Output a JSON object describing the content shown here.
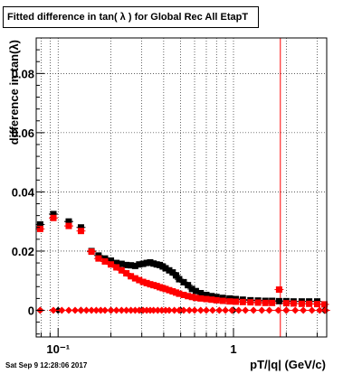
{
  "chart_data": {
    "type": "scatter",
    "title": "Fitted difference in tan( λ ) for Global Rec All EtapT",
    "xlabel": "pT/|q| (GeV/c)",
    "ylabel": "difference in tan(λ)",
    "x_scale": "log",
    "xlim": [
      0.075,
      3.4
    ],
    "ylim": [
      -0.009,
      0.092
    ],
    "grid": true,
    "y_ticks": [
      {
        "value": 0,
        "label": "0"
      },
      {
        "value": 0.02,
        "label": "0.02"
      },
      {
        "value": 0.04,
        "label": "0.04"
      },
      {
        "value": 0.06,
        "label": "0.06"
      },
      {
        "value": 0.08,
        "label": "0.08"
      }
    ],
    "x_ticks": [
      {
        "value": 0.1,
        "label": "10⁻¹"
      },
      {
        "value": 1,
        "label": "1"
      }
    ],
    "vertical_line": {
      "x": 1.85,
      "color": "#ff0000"
    },
    "series": [
      {
        "marker": "square",
        "color": "#000000",
        "x": [
          0.079,
          0.094,
          0.115,
          0.135,
          0.155,
          0.17,
          0.185,
          0.2,
          0.215,
          0.23,
          0.245,
          0.26,
          0.275,
          0.29,
          0.305,
          0.32,
          0.335,
          0.35,
          0.365,
          0.38,
          0.395,
          0.41,
          0.43,
          0.45,
          0.47,
          0.49,
          0.52,
          0.55,
          0.58,
          0.61,
          0.65,
          0.7,
          0.75,
          0.8,
          0.87,
          0.95,
          1.03,
          1.13,
          1.25,
          1.38,
          1.52,
          1.66,
          1.82,
          2.0,
          2.2,
          2.45,
          2.7,
          3.0,
          3.3
        ],
        "y": [
          0.029,
          0.0325,
          0.03,
          0.028,
          0.02,
          0.0185,
          0.0175,
          0.0168,
          0.016,
          0.0157,
          0.0153,
          0.0152,
          0.015,
          0.0155,
          0.0157,
          0.016,
          0.0162,
          0.0158,
          0.0155,
          0.0153,
          0.0148,
          0.0142,
          0.0135,
          0.0128,
          0.0118,
          0.0105,
          0.0095,
          0.0085,
          0.0072,
          0.0065,
          0.0058,
          0.0052,
          0.0048,
          0.0045,
          0.0042,
          0.004,
          0.0038,
          0.0036,
          0.0034,
          0.0033,
          0.0032,
          0.0032,
          0.0031,
          0.0031,
          0.003,
          0.003,
          0.003,
          0.003,
          0.002
        ]
      },
      {
        "marker": "square",
        "color": "#ff0000",
        "x": [
          0.079,
          0.094,
          0.115,
          0.135,
          0.155,
          0.17,
          0.185,
          0.2,
          0.215,
          0.23,
          0.245,
          0.26,
          0.275,
          0.29,
          0.305,
          0.32,
          0.335,
          0.35,
          0.365,
          0.38,
          0.395,
          0.41,
          0.43,
          0.45,
          0.47,
          0.49,
          0.52,
          0.55,
          0.58,
          0.61,
          0.65,
          0.7,
          0.75,
          0.8,
          0.87,
          0.95,
          1.03,
          1.13,
          1.25,
          1.38,
          1.52,
          1.66,
          1.82,
          2.0,
          2.2,
          2.45,
          2.7,
          3.0,
          3.3
        ],
        "y": [
          0.0275,
          0.0312,
          0.0285,
          0.0268,
          0.0198,
          0.0175,
          0.0165,
          0.0155,
          0.0145,
          0.0135,
          0.0125,
          0.0115,
          0.0108,
          0.0102,
          0.0096,
          0.0092,
          0.0088,
          0.0085,
          0.0082,
          0.0078,
          0.0075,
          0.0072,
          0.0068,
          0.0064,
          0.006,
          0.0056,
          0.0052,
          0.0048,
          0.0045,
          0.0042,
          0.004,
          0.0038,
          0.0036,
          0.0034,
          0.0032,
          0.003,
          0.0029,
          0.0028,
          0.0027,
          0.0026,
          0.0025,
          0.0025,
          0.007,
          0.0024,
          0.0023,
          0.0022,
          0.0022,
          0.0021,
          0.002
        ]
      },
      {
        "marker": "diamond",
        "color": "#000000",
        "x": [
          0.079,
          0.1,
          0.135,
          0.2,
          0.3,
          0.5,
          1.0,
          2.0,
          3.3
        ],
        "y": [
          0,
          0,
          0,
          0,
          0,
          0,
          0,
          0,
          0
        ]
      },
      {
        "marker": "diamond",
        "color": "#ff0000",
        "x": [
          0.079,
          0.094,
          0.105,
          0.115,
          0.125,
          0.135,
          0.145,
          0.155,
          0.165,
          0.175,
          0.185,
          0.2,
          0.215,
          0.23,
          0.245,
          0.26,
          0.275,
          0.29,
          0.305,
          0.32,
          0.335,
          0.35,
          0.37,
          0.39,
          0.41,
          0.43,
          0.46,
          0.49,
          0.52,
          0.56,
          0.6,
          0.65,
          0.7,
          0.76,
          0.83,
          0.9,
          0.98,
          1.07,
          1.17,
          1.3,
          1.45,
          1.6,
          1.8,
          2.0,
          2.25,
          2.5,
          2.8,
          3.1,
          3.35
        ],
        "y": [
          0,
          0,
          0,
          0,
          0,
          0,
          0,
          0,
          0,
          0,
          0,
          0,
          0,
          0,
          0,
          0,
          0,
          0,
          0,
          0,
          0,
          0,
          0,
          0,
          0,
          0,
          0,
          0,
          0,
          0,
          0,
          0,
          0,
          0,
          0,
          0,
          0,
          0,
          0,
          0,
          0,
          0,
          0,
          0,
          0,
          0,
          0,
          0,
          0
        ]
      }
    ]
  },
  "footer": {
    "timestamp": "Sat Sep  9 12:28:06 2017"
  }
}
